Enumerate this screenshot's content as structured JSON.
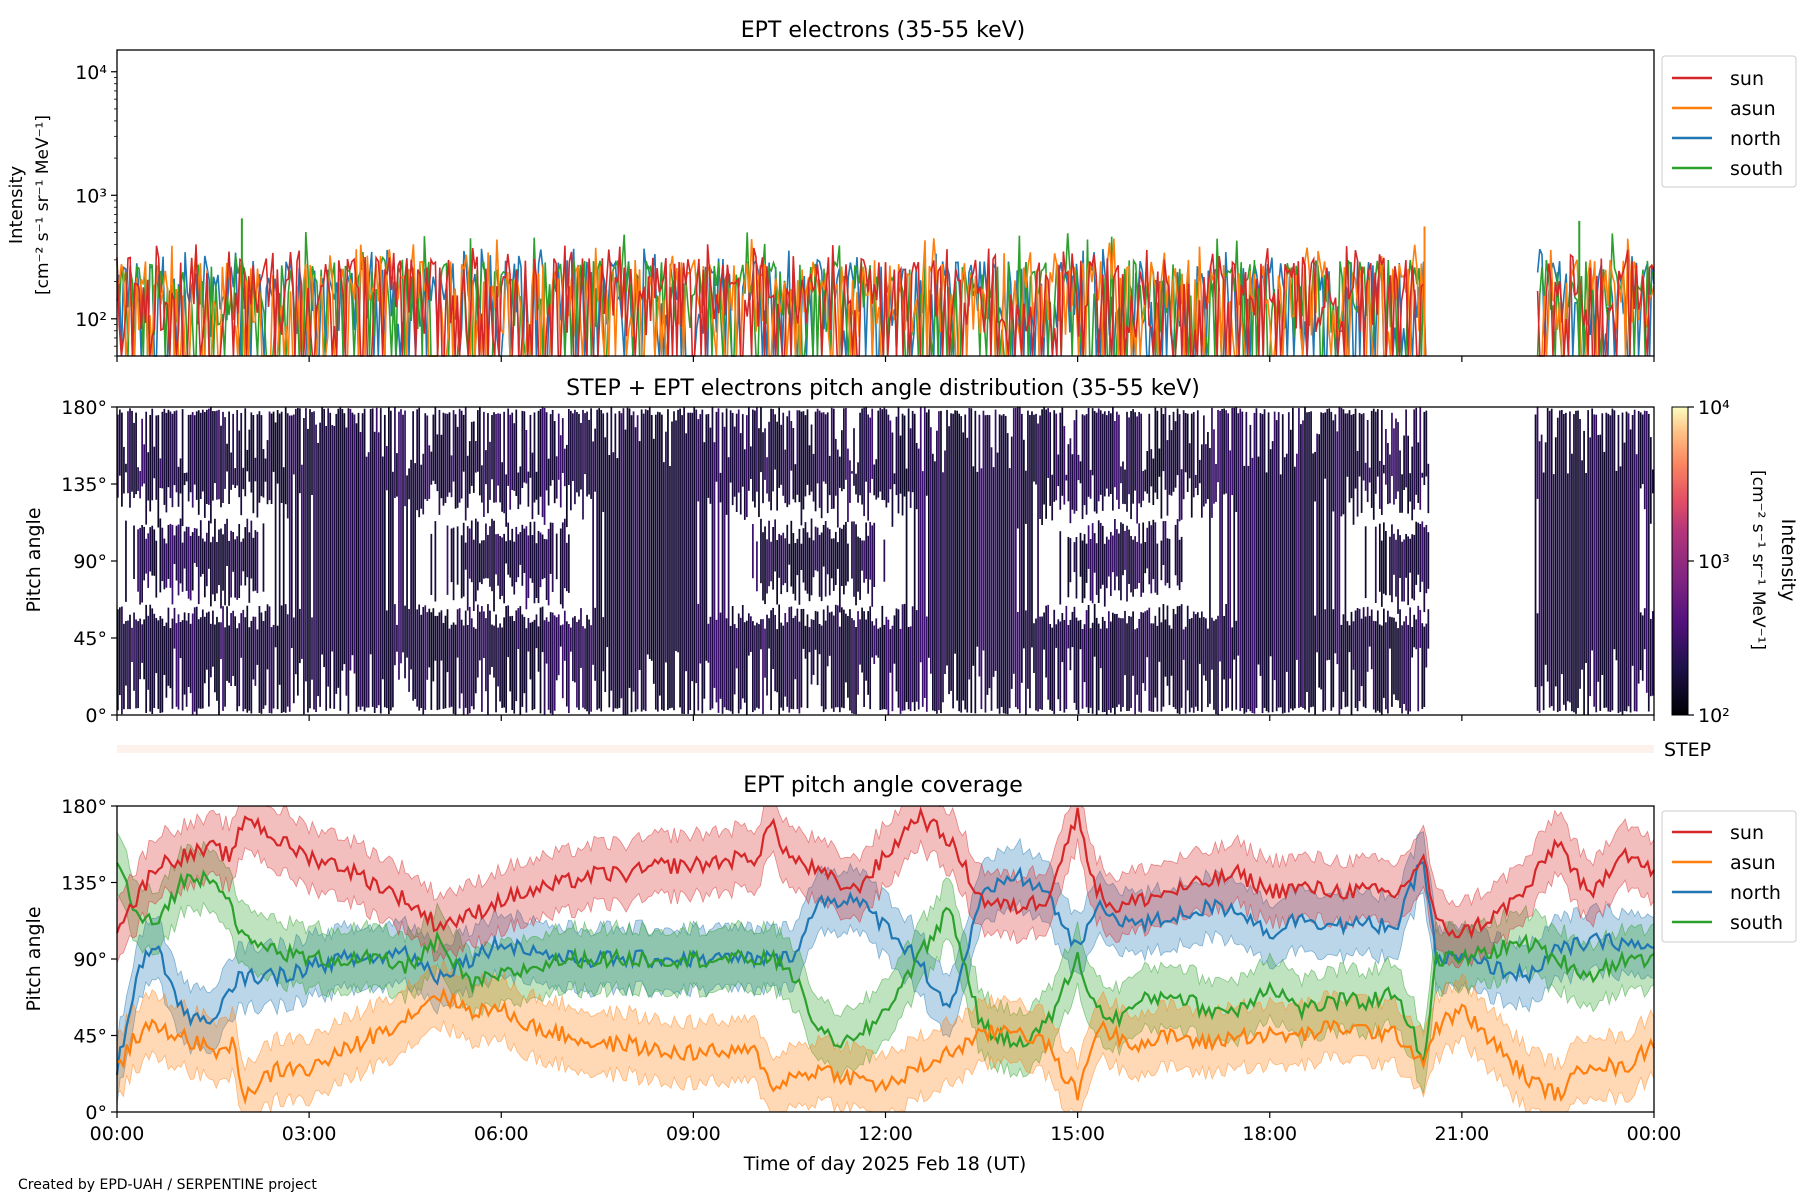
{
  "figure": {
    "credit": "Created by EPD-UAH / SERPENTINE project",
    "xlabel": "Time of day 2025 Feb 18 (UT)",
    "xticks": [
      "00:00",
      "03:00",
      "06:00",
      "09:00",
      "12:00",
      "15:00",
      "18:00",
      "21:00",
      "00:00"
    ],
    "x_range_hours": [
      0,
      24
    ],
    "data_gap_hours": [
      20.45,
      22.15
    ]
  },
  "colors": {
    "sun": "#d62728",
    "asun": "#ff7f0e",
    "north": "#1f77b4",
    "south": "#2ca02c",
    "step_bar": "#fdf1ec"
  },
  "chart_data": [
    {
      "type": "line",
      "title": "EPT electrons (35-55 keV)",
      "ylabel": "Intensity",
      "ylabel_units": "[cm⁻² s⁻¹ sr⁻¹ MeV⁻¹]",
      "yscale": "log",
      "ylim": [
        50,
        15000
      ],
      "yticks": [
        {
          "value": 100,
          "label": "10²"
        },
        {
          "value": 1000,
          "label": "10³"
        },
        {
          "value": 10000,
          "label": "10⁴"
        }
      ],
      "legend_position": "outside-right",
      "series": [
        {
          "name": "sun",
          "typical_range": [
            50,
            320
          ],
          "max": 460
        },
        {
          "name": "asun",
          "typical_range": [
            50,
            300
          ],
          "max": 560
        },
        {
          "name": "north",
          "typical_range": [
            50,
            300
          ],
          "max": 420
        },
        {
          "name": "south",
          "typical_range": [
            50,
            300
          ],
          "max": 650
        }
      ],
      "notable_peaks": [
        {
          "x": "01:57",
          "series": "south",
          "y": 650
        },
        {
          "x": "20:25",
          "series": "asun",
          "y": 560
        },
        {
          "x": "22:50",
          "series": "south",
          "y": 620
        }
      ]
    },
    {
      "type": "heatmap",
      "title": "STEP + EPT electrons pitch angle distribution (35-55 keV)",
      "ylabel": "Pitch angle",
      "ylim": [
        0,
        180
      ],
      "yticks": [
        "0°",
        "45°",
        "90°",
        "135°",
        "180°"
      ],
      "colorbar": {
        "label": "Intensity",
        "units": "[cm⁻² s⁻¹ sr⁻¹ MeV⁻¹]",
        "scale": "log",
        "range": [
          100,
          10000
        ],
        "ticks": [
          "10²",
          "10³",
          "10⁴"
        ]
      },
      "step_label": "STEP"
    },
    {
      "type": "line",
      "title": "EPT pitch angle coverage",
      "ylabel": "Pitch angle",
      "ylim": [
        0,
        180
      ],
      "yticks": [
        "0°",
        "45°",
        "90°",
        "135°",
        "180°"
      ],
      "legend_position": "outside-right",
      "band_halfwidth_deg": 18,
      "x_hours": [
        0,
        0.3,
        0.6,
        1,
        1.5,
        1.8,
        2,
        2.5,
        3,
        3.5,
        4,
        4.5,
        5,
        5.5,
        6,
        6.5,
        7,
        7.5,
        8,
        8.5,
        9,
        9.5,
        10,
        10.2,
        10.5,
        11,
        11.5,
        12,
        12.5,
        13,
        13.5,
        14,
        14.5,
        15,
        15.3,
        15.6,
        16,
        16.5,
        17,
        17.5,
        18,
        18.5,
        19,
        19.5,
        20,
        20.4,
        20.6,
        21,
        21.5,
        22,
        22.5,
        23,
        23.5,
        24
      ],
      "series": [
        {
          "name": "sun",
          "values": [
            110,
            125,
            145,
            150,
            155,
            150,
            175,
            160,
            150,
            145,
            135,
            125,
            110,
            115,
            125,
            130,
            135,
            140,
            140,
            145,
            145,
            148,
            150,
            170,
            150,
            140,
            130,
            150,
            175,
            160,
            125,
            120,
            125,
            175,
            130,
            120,
            125,
            130,
            135,
            140,
            130,
            132,
            130,
            130,
            128,
            150,
            110,
            105,
            115,
            130,
            160,
            125,
            155,
            140
          ]
        },
        {
          "name": "asun",
          "values": [
            25,
            45,
            50,
            45,
            35,
            40,
            10,
            25,
            25,
            35,
            45,
            55,
            70,
            60,
            60,
            50,
            45,
            40,
            40,
            35,
            35,
            35,
            35,
            15,
            20,
            25,
            20,
            15,
            25,
            35,
            45,
            50,
            40,
            10,
            50,
            45,
            40,
            45,
            40,
            45,
            45,
            45,
            50,
            48,
            45,
            30,
            50,
            60,
            40,
            20,
            10,
            30,
            25,
            40
          ]
        },
        {
          "name": "north",
          "values": [
            25,
            80,
            100,
            60,
            50,
            75,
            80,
            80,
            85,
            90,
            90,
            95,
            80,
            90,
            100,
            95,
            90,
            90,
            90,
            90,
            90,
            90,
            90,
            90,
            90,
            125,
            125,
            110,
            90,
            60,
            125,
            140,
            130,
            95,
            120,
            115,
            110,
            115,
            120,
            120,
            105,
            115,
            110,
            110,
            110,
            150,
            90,
            90,
            85,
            80,
            95,
            100,
            100,
            95
          ]
        },
        {
          "name": "south",
          "values": [
            150,
            115,
            110,
            135,
            140,
            120,
            100,
            95,
            90,
            90,
            90,
            85,
            100,
            75,
            80,
            85,
            90,
            90,
            90,
            90,
            90,
            90,
            90,
            90,
            85,
            45,
            40,
            60,
            90,
            120,
            50,
            40,
            50,
            90,
            60,
            55,
            65,
            70,
            60,
            60,
            75,
            60,
            65,
            65,
            70,
            30,
            90,
            90,
            95,
            100,
            90,
            80,
            90,
            90
          ]
        }
      ]
    }
  ]
}
